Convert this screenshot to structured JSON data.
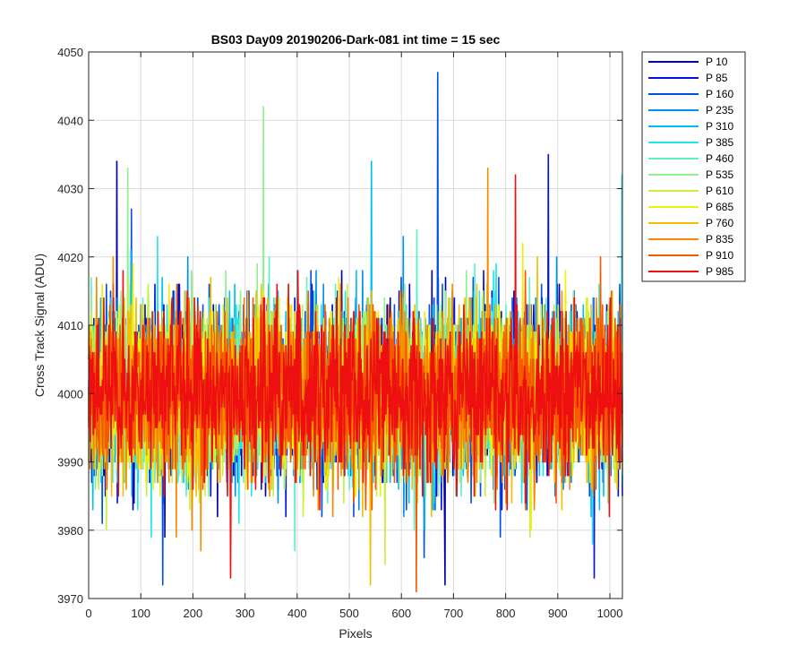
{
  "chart_data": {
    "type": "line",
    "title": "BS03 Day09 20190206-Dark-081 int time = 15 sec",
    "xlabel": "Pixels",
    "ylabel": "Cross Track Signal (ADU)",
    "xlim": [
      0,
      1024
    ],
    "ylim": [
      3970,
      4050
    ],
    "xticks": [
      0,
      100,
      200,
      300,
      400,
      500,
      600,
      700,
      800,
      900,
      1000
    ],
    "yticks": [
      3970,
      3980,
      3990,
      4000,
      4010,
      4020,
      4030,
      4040,
      4050
    ],
    "grid": true,
    "legend_position": "outside-top-right",
    "noise": {
      "mean": 4000,
      "std": 6,
      "min": 3971,
      "max": 4047
    },
    "series": [
      {
        "name": "P 10",
        "color": "#0000AA"
      },
      {
        "name": "P 85",
        "color": "#0010E0"
      },
      {
        "name": "P 160",
        "color": "#0050E6"
      },
      {
        "name": "P 235",
        "color": "#0090F0"
      },
      {
        "name": "P 310",
        "color": "#00BFF5"
      },
      {
        "name": "P 385",
        "color": "#20E6F0"
      },
      {
        "name": "P 460",
        "color": "#60F0C8"
      },
      {
        "name": "P 535",
        "color": "#90F090"
      },
      {
        "name": "P 610",
        "color": "#C8F040"
      },
      {
        "name": "P 685",
        "color": "#F0F000"
      },
      {
        "name": "P 760",
        "color": "#F5BE00"
      },
      {
        "name": "P 835",
        "color": "#F58C00"
      },
      {
        "name": "P 910",
        "color": "#F55A00"
      },
      {
        "name": "P 985",
        "color": "#EE1010"
      }
    ],
    "spikes": [
      {
        "series": "P 160",
        "x": 669,
        "y": 4047
      },
      {
        "series": "P 535",
        "x": 335,
        "y": 4042
      },
      {
        "series": "P 85",
        "x": 881,
        "y": 4035
      },
      {
        "series": "P 10",
        "x": 54,
        "y": 4034
      },
      {
        "series": "P 310",
        "x": 542,
        "y": 4034
      },
      {
        "series": "P 385",
        "x": 1022,
        "y": 4032
      },
      {
        "series": "P 535",
        "x": 75,
        "y": 4033
      },
      {
        "series": "P 835",
        "x": 765,
        "y": 4033
      },
      {
        "series": "P 985",
        "x": 818,
        "y": 4032
      },
      {
        "series": "P 910",
        "x": 628,
        "y": 3971
      },
      {
        "series": "P 160",
        "x": 142,
        "y": 3972
      },
      {
        "series": "P 760",
        "x": 540,
        "y": 3972
      },
      {
        "series": "P 85",
        "x": 969,
        "y": 3973
      },
      {
        "series": "P 985",
        "x": 272,
        "y": 3973
      },
      {
        "series": "P 10",
        "x": 683,
        "y": 3972
      }
    ]
  }
}
